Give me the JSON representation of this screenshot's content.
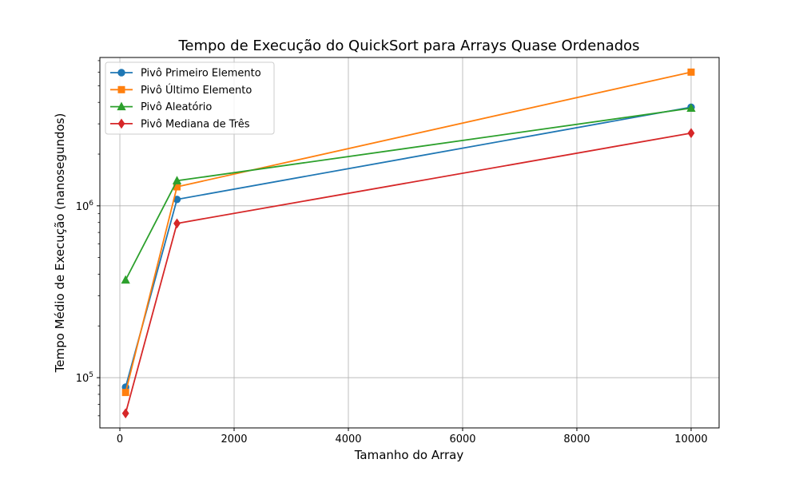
{
  "chart_data": {
    "type": "line",
    "title": "Tempo de Execução do QuickSort para Arrays Quase Ordenados",
    "xlabel": "Tamanho do Array",
    "ylabel": "Tempo Médio de Execução (nanosegundos)",
    "x": [
      100,
      1000,
      10000
    ],
    "xlim": [
      -350,
      10490
    ],
    "ylim": [
      51000,
      7300000
    ],
    "yscale": "log",
    "xticks": [
      0,
      2000,
      4000,
      6000,
      8000,
      10000
    ],
    "xtick_labels": [
      "0",
      "2000",
      "4000",
      "6000",
      "8000",
      "10000"
    ],
    "yticks": [
      100000,
      1000000
    ],
    "ytick_labels": [
      [
        "10",
        "5"
      ],
      [
        "10",
        "6"
      ]
    ],
    "grid": true,
    "legend_position": "top-left",
    "series": [
      {
        "name": "Pivô Primeiro Elemento",
        "color": "#1f77b4",
        "marker": "circle",
        "values": [
          88000,
          1090000,
          3750000
        ]
      },
      {
        "name": "Pivô Último Elemento",
        "color": "#ff7f0e",
        "marker": "square",
        "values": [
          82000,
          1290000,
          6000000
        ]
      },
      {
        "name": "Pivô Aleatório",
        "color": "#2ca02c",
        "marker": "triangle",
        "values": [
          370000,
          1400000,
          3700000
        ]
      },
      {
        "name": "Pivô Mediana de Três",
        "color": "#d62728",
        "marker": "diamond",
        "values": [
          62000,
          790000,
          2650000
        ]
      }
    ]
  }
}
